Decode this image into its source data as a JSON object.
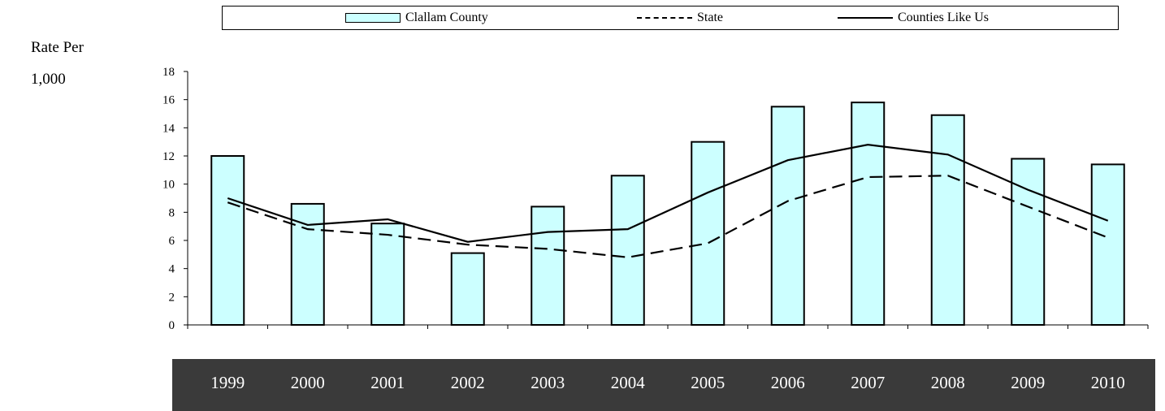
{
  "legend": {
    "bar_label": "Clallam County",
    "state_label": "State",
    "counties_label": "Counties Like Us"
  },
  "y_label_line1": "Rate Per",
  "y_label_line2": "1,000",
  "colors": {
    "bar_fill": "#ccffff",
    "bar_stroke": "#000000",
    "line": "#000000",
    "year_band": "#3a3a3a"
  },
  "chart_data": {
    "type": "bar",
    "categories": [
      "1999",
      "2000",
      "2001",
      "2002",
      "2003",
      "2004",
      "2005",
      "2006",
      "2007",
      "2008",
      "2009",
      "2010"
    ],
    "series": [
      {
        "name": "Clallam County",
        "type": "bar",
        "values": [
          12.0,
          8.6,
          7.2,
          5.1,
          8.4,
          10.6,
          13.0,
          15.5,
          15.8,
          14.9,
          11.8,
          11.4
        ]
      },
      {
        "name": "State",
        "type": "line",
        "style": "dashed",
        "values": [
          8.7,
          6.8,
          6.4,
          5.7,
          5.4,
          4.8,
          5.8,
          8.8,
          10.5,
          10.6,
          8.4,
          6.2
        ]
      },
      {
        "name": "Counties Like Us",
        "type": "line",
        "style": "solid",
        "values": [
          9.0,
          7.1,
          7.5,
          5.9,
          6.6,
          6.8,
          9.4,
          11.7,
          12.8,
          12.1,
          9.6,
          7.4
        ]
      }
    ],
    "ylim": [
      0,
      18
    ],
    "yticks": [
      0,
      2,
      4,
      6,
      8,
      10,
      12,
      14,
      16,
      18
    ],
    "ylabel": "Rate Per 1,000",
    "xlabel": "",
    "legend_position": "top",
    "grid": false
  }
}
